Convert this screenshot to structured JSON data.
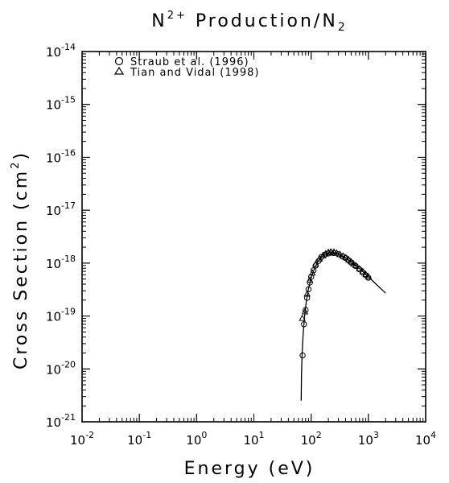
{
  "chart_data": {
    "type": "scatter",
    "title_main": "N",
    "title_sup": "2+",
    "title_rest": " Production/N",
    "title_sub": "2",
    "xlabel": "Energy (eV)",
    "ylabel_main": "Cross Section (cm",
    "ylabel_sup": "2",
    "ylabel_end": ")",
    "x_scale": "log",
    "y_scale": "log",
    "xlim": [
      0.01,
      10000
    ],
    "ylim": [
      1e-21,
      1e-14
    ],
    "grid": false,
    "legend_position": "top-left",
    "x_ticks": [
      {
        "base": "10",
        "exp": "-2",
        "value": 0.01
      },
      {
        "base": "10",
        "exp": "-1",
        "value": 0.1
      },
      {
        "base": "10",
        "exp": "0",
        "value": 1
      },
      {
        "base": "10",
        "exp": "1",
        "value": 10
      },
      {
        "base": "10",
        "exp": "2",
        "value": 100
      },
      {
        "base": "10",
        "exp": "3",
        "value": 1000
      },
      {
        "base": "10",
        "exp": "4",
        "value": 10000
      }
    ],
    "y_ticks": [
      {
        "base": "10",
        "exp": "-14",
        "value": 1e-14
      },
      {
        "base": "10",
        "exp": "-15",
        "value": 1e-15
      },
      {
        "base": "10",
        "exp": "-16",
        "value": 1e-16
      },
      {
        "base": "10",
        "exp": "-17",
        "value": 1e-17
      },
      {
        "base": "10",
        "exp": "-18",
        "value": 1e-18
      },
      {
        "base": "10",
        "exp": "-19",
        "value": 1e-19
      },
      {
        "base": "10",
        "exp": "-20",
        "value": 1e-20
      },
      {
        "base": "10",
        "exp": "-21",
        "value": 1e-21
      }
    ],
    "series": [
      {
        "name": "Straub et al. (1996)",
        "marker": "circle",
        "points": [
          [
            71,
            1.8e-20
          ],
          [
            75,
            7e-20
          ],
          [
            80,
            1.3e-19
          ],
          [
            85,
            2.2e-19
          ],
          [
            90,
            3.2e-19
          ],
          [
            95,
            4.3e-19
          ],
          [
            100,
            5.5e-19
          ],
          [
            110,
            7.3e-19
          ],
          [
            120,
            9e-19
          ],
          [
            135,
            1.1e-18
          ],
          [
            150,
            1.3e-18
          ],
          [
            175,
            1.45e-18
          ],
          [
            200,
            1.52e-18
          ],
          [
            225,
            1.57e-18
          ],
          [
            250,
            1.55e-18
          ],
          [
            300,
            1.47e-18
          ],
          [
            350,
            1.35e-18
          ],
          [
            400,
            1.25e-18
          ],
          [
            450,
            1.13e-18
          ],
          [
            500,
            1.03e-18
          ],
          [
            600,
            8.8e-19
          ],
          [
            700,
            7.6e-19
          ],
          [
            800,
            6.6e-19
          ],
          [
            900,
            5.9e-19
          ],
          [
            1000,
            5.3e-19
          ]
        ]
      },
      {
        "name": "Tian and Vidal (1998)",
        "marker": "triangle",
        "points": [
          [
            70,
            9e-20
          ],
          [
            78,
            1.2e-19
          ],
          [
            85,
            2.6e-19
          ],
          [
            95,
            4.8e-19
          ],
          [
            105,
            6.5e-19
          ],
          [
            120,
            9.5e-19
          ],
          [
            140,
            1.2e-18
          ],
          [
            160,
            1.38e-18
          ],
          [
            180,
            1.5e-18
          ],
          [
            200,
            1.6e-18
          ],
          [
            220,
            1.63e-18
          ],
          [
            250,
            1.62e-18
          ],
          [
            280,
            1.55e-18
          ],
          [
            320,
            1.45e-18
          ],
          [
            360,
            1.35e-18
          ],
          [
            400,
            1.27e-18
          ],
          [
            450,
            1.16e-18
          ],
          [
            500,
            1.06e-18
          ],
          [
            550,
            9.7e-19
          ],
          [
            600,
            9e-19
          ],
          [
            700,
            7.8e-19
          ],
          [
            800,
            6.9e-19
          ],
          [
            900,
            6.1e-19
          ],
          [
            1000,
            5.5e-19
          ]
        ]
      }
    ],
    "fit_curve": [
      [
        67,
        2.5e-21
      ],
      [
        68,
        8e-21
      ],
      [
        70,
        2.2e-20
      ],
      [
        73,
        5e-20
      ],
      [
        77,
        1e-19
      ],
      [
        82,
        1.8e-19
      ],
      [
        90,
        3.3e-19
      ],
      [
        100,
        5.3e-19
      ],
      [
        115,
        8e-19
      ],
      [
        130,
        1.05e-18
      ],
      [
        150,
        1.3e-18
      ],
      [
        175,
        1.48e-18
      ],
      [
        200,
        1.57e-18
      ],
      [
        230,
        1.6e-18
      ],
      [
        270,
        1.55e-18
      ],
      [
        320,
        1.43e-18
      ],
      [
        400,
        1.25e-18
      ],
      [
        500,
        1.05e-18
      ],
      [
        650,
        8.4e-19
      ],
      [
        800,
        6.9e-19
      ],
      [
        1000,
        5.5e-19
      ],
      [
        1300,
        4.2e-19
      ],
      [
        1600,
        3.4e-19
      ],
      [
        2000,
        2.7e-19
      ]
    ]
  }
}
